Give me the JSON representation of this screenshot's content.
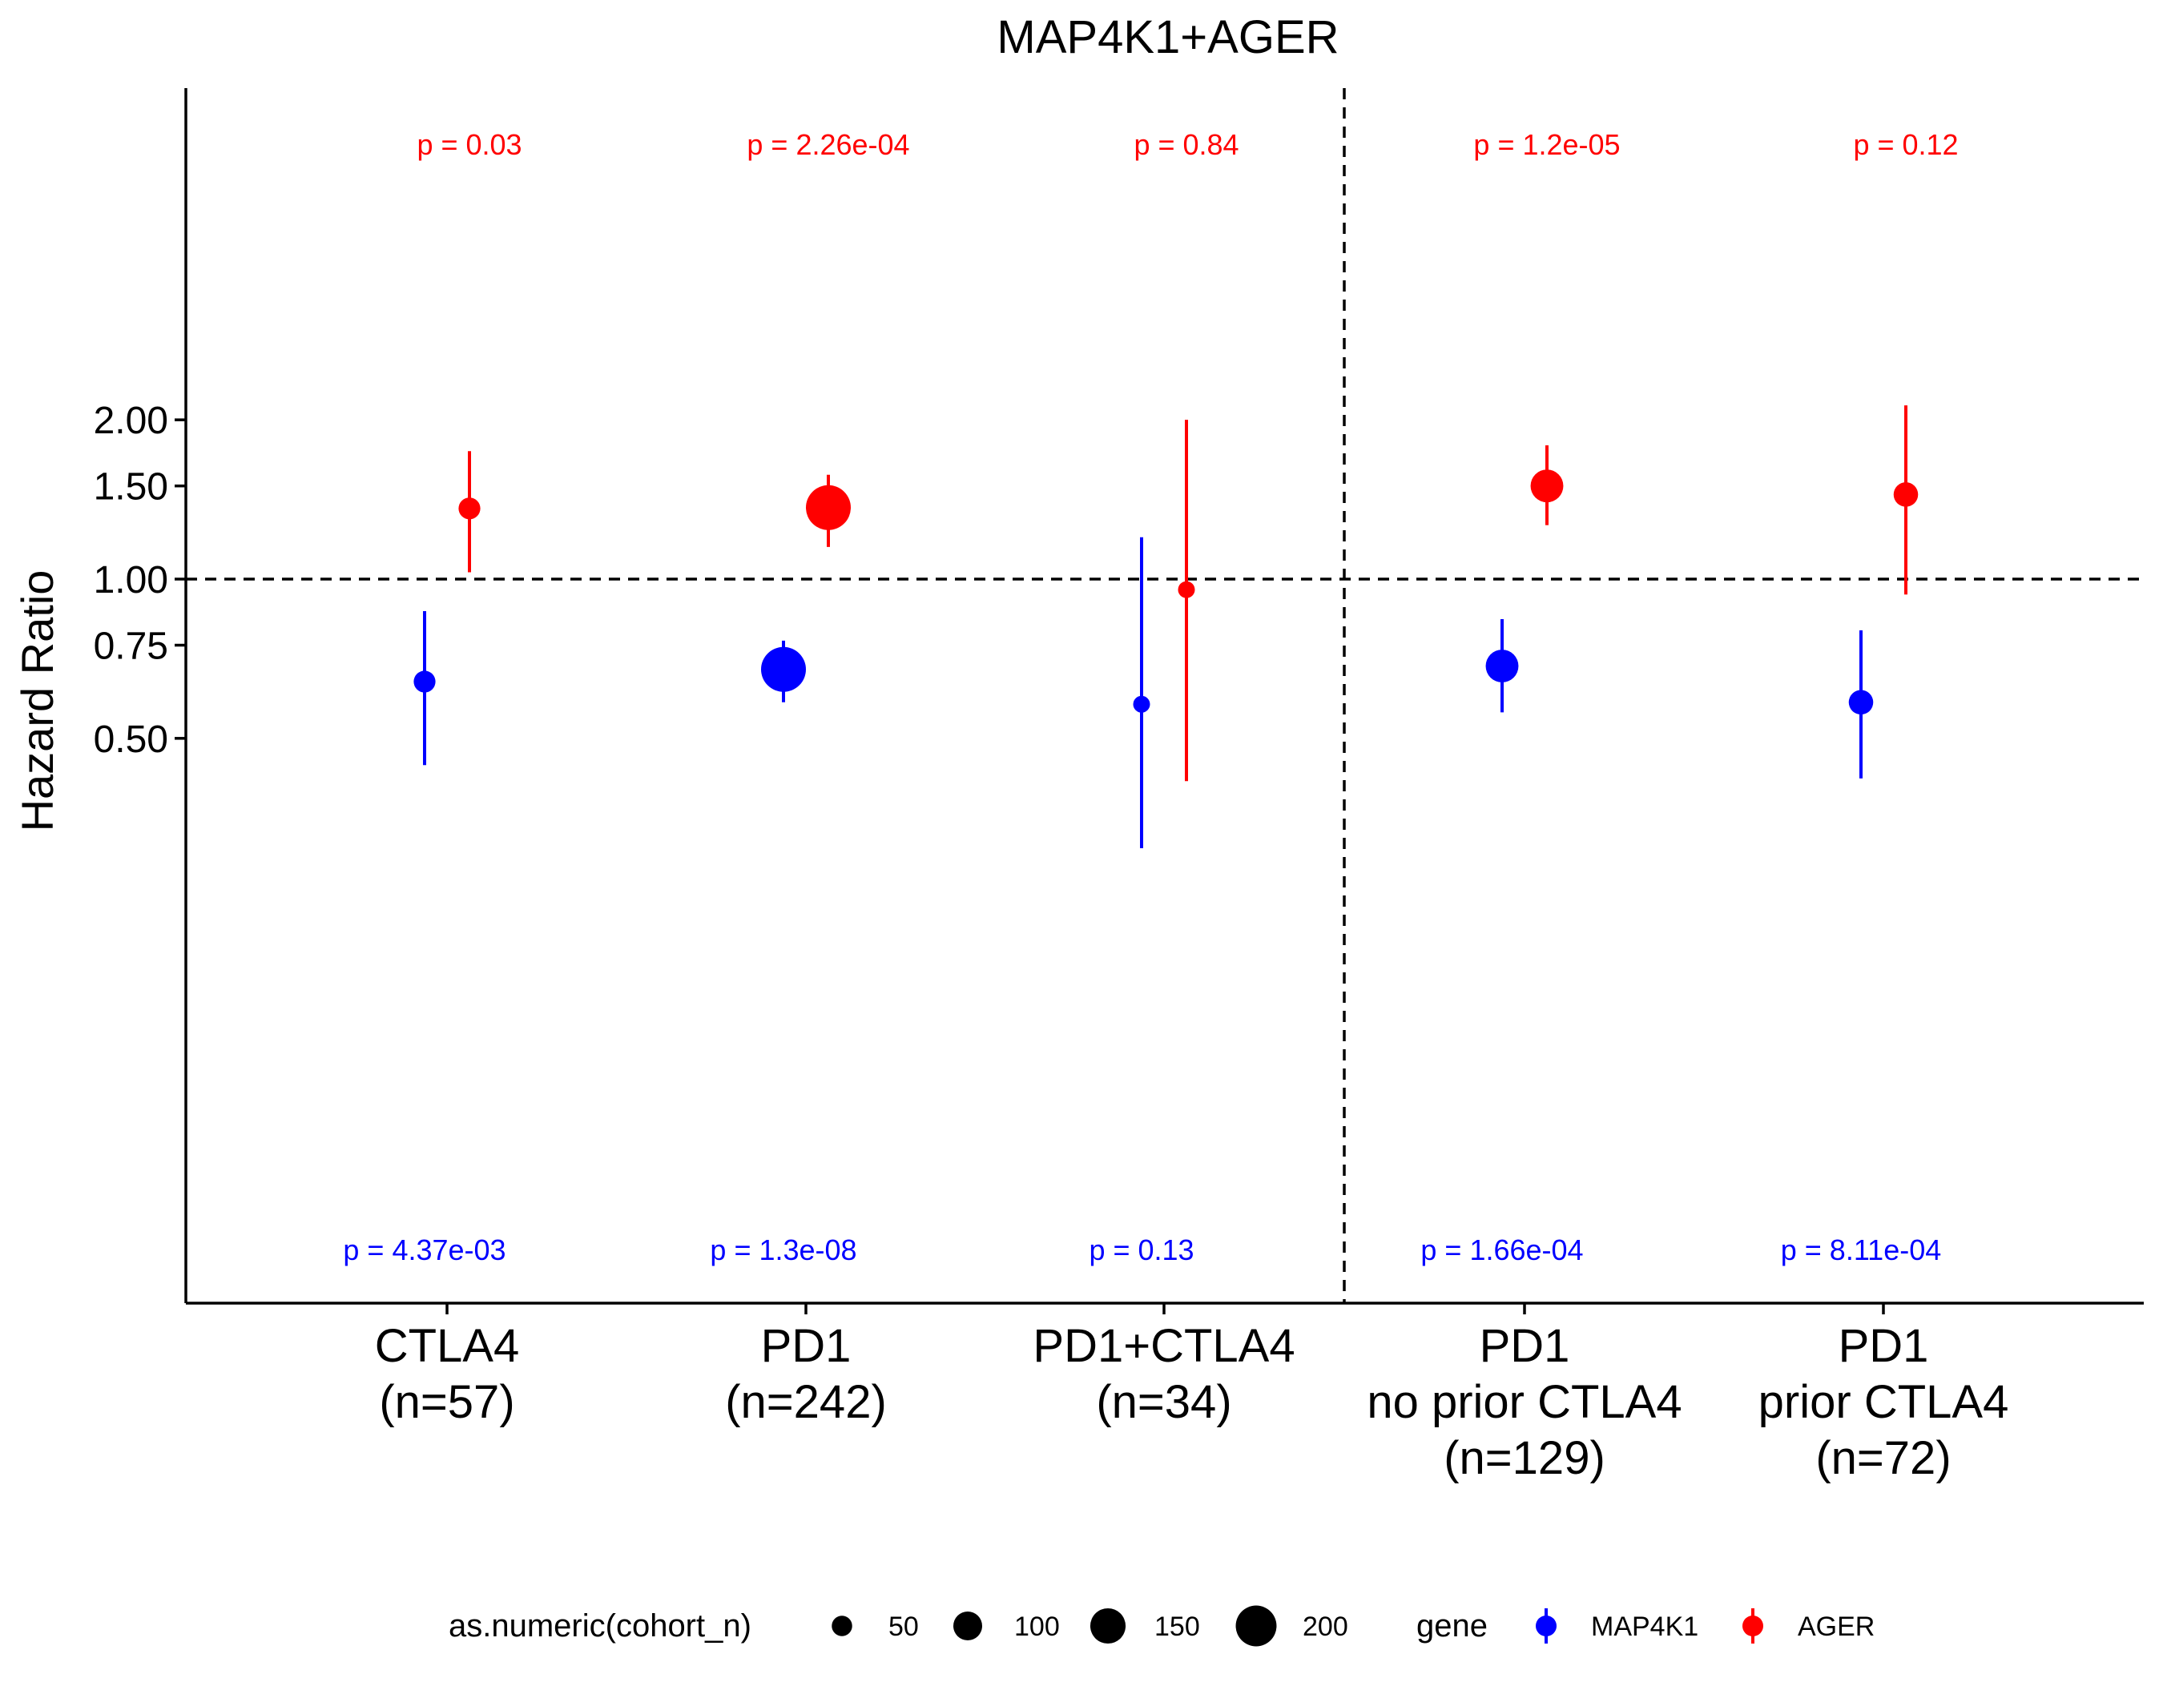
{
  "chart_data": {
    "type": "scatter",
    "title": "MAP4K1+AGER",
    "xlabel": "",
    "ylabel": "Hazard Ratio",
    "y_scale": "log",
    "ylim": [
      0.27,
      2.9
    ],
    "yticks": [
      "0.50",
      "0.75",
      "1.00",
      "1.50",
      "2.00"
    ],
    "reference_line_y": 1.0,
    "grid": false,
    "categories": [
      [
        "CTLA4",
        "(n=57)"
      ],
      [
        "PD1",
        "(n=242)"
      ],
      [
        "PD1+CTLA4",
        "(n=34)"
      ],
      [
        "PD1",
        "no prior CTLA4",
        "(n=129)"
      ],
      [
        "PD1",
        "prior CTLA4",
        "(n=72)"
      ]
    ],
    "cohort_n": [
      57,
      242,
      34,
      129,
      72
    ],
    "series": [
      {
        "name": "MAP4K1",
        "color": "#0000ff",
        "hr": [
          0.64,
          0.675,
          0.58,
          0.685,
          0.585
        ],
        "lower": [
          0.445,
          0.585,
          0.31,
          0.56,
          0.42
        ],
        "upper": [
          0.87,
          0.765,
          1.2,
          0.84,
          0.8
        ],
        "p_labels": [
          "p = 4.37e-03",
          "p = 1.3e-08",
          "p = 0.13",
          "p = 1.66e-04",
          "p = 8.11e-04"
        ]
      },
      {
        "name": "AGER",
        "color": "#ff0000",
        "hr": [
          1.36,
          1.365,
          0.955,
          1.5,
          1.445
        ],
        "lower": [
          1.03,
          1.15,
          0.415,
          1.265,
          0.935
        ],
        "upper": [
          1.745,
          1.575,
          2.0,
          1.79,
          2.13
        ],
        "p_labels": [
          "p = 0.03",
          "p = 2.26e-04",
          "p = 0.84",
          "p = 1.2e-05",
          "p = 0.12"
        ]
      }
    ],
    "legend": {
      "placement": "bottom",
      "size_title": "as.numeric(cohort_n)",
      "size_entries": [
        50,
        100,
        150,
        200
      ],
      "color_title": "gene",
      "color_entries": [
        "MAP4K1",
        "AGER"
      ]
    }
  }
}
